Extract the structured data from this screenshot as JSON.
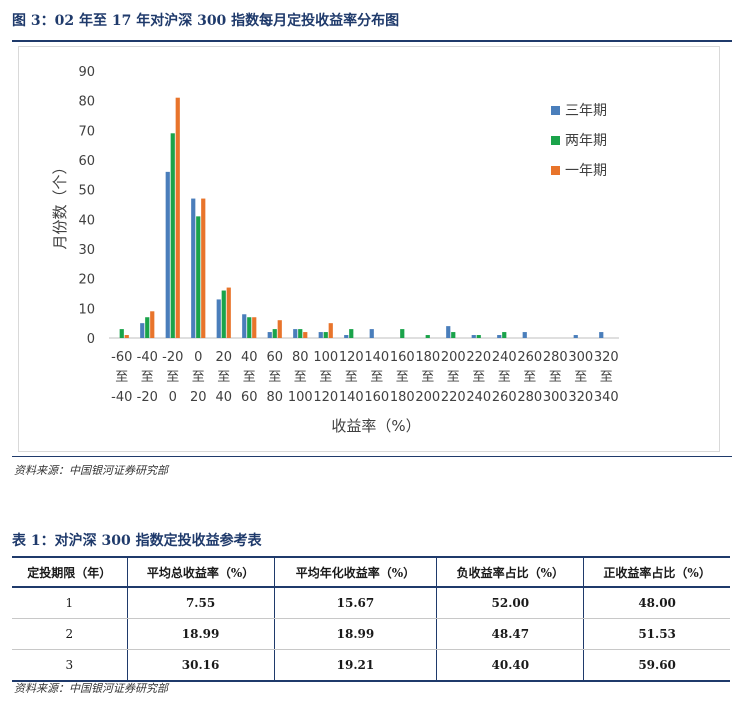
{
  "figure": {
    "title": "图 3：02 年至 17 年对沪深 300 指数每月定投收益率分布图",
    "source": "资料来源：中国银河证券研究部"
  },
  "colors": {
    "accent": "#1f3a6b",
    "series": [
      "#4a7ebb",
      "#1aa34a",
      "#e8742b"
    ]
  },
  "chart_data": {
    "type": "bar",
    "title": "",
    "xlabel": "收益率（%）",
    "ylabel": "月份数（个）",
    "ylim": [
      0,
      90
    ],
    "yticks": [
      0,
      10,
      20,
      30,
      40,
      50,
      60,
      70,
      80,
      90
    ],
    "grid": false,
    "legend_position": "right",
    "categories": [
      [
        "-60",
        "至",
        "-40"
      ],
      [
        "-40",
        "至",
        "-20"
      ],
      [
        "-20",
        "至",
        "0"
      ],
      [
        "0",
        "至",
        "20"
      ],
      [
        "20",
        "至",
        "40"
      ],
      [
        "40",
        "至",
        "60"
      ],
      [
        "60",
        "至",
        "80"
      ],
      [
        "80",
        "至",
        "100"
      ],
      [
        "100",
        "至",
        "120"
      ],
      [
        "120",
        "至",
        "140"
      ],
      [
        "140",
        "至",
        "160"
      ],
      [
        "160",
        "至",
        "180"
      ],
      [
        "180",
        "至",
        "200"
      ],
      [
        "200",
        "至",
        "220"
      ],
      [
        "220",
        "至",
        "240"
      ],
      [
        "240",
        "至",
        "260"
      ],
      [
        "260",
        "至",
        "280"
      ],
      [
        "280",
        "至",
        "300"
      ],
      [
        "300",
        "至",
        "320"
      ],
      [
        "320",
        "至",
        "340"
      ]
    ],
    "series": [
      {
        "name": "三年期",
        "color": "#4a7ebb",
        "values": [
          0,
          5,
          56,
          47,
          13,
          8,
          2,
          3,
          2,
          1,
          3,
          0,
          0,
          4,
          1,
          1,
          2,
          0,
          1,
          2
        ]
      },
      {
        "name": "两年期",
        "color": "#1aa34a",
        "values": [
          3,
          7,
          69,
          41,
          16,
          7,
          3,
          3,
          2,
          3,
          0,
          3,
          1,
          2,
          1,
          2,
          0,
          0,
          0,
          0
        ]
      },
      {
        "name": "一年期",
        "color": "#e8742b",
        "values": [
          1,
          9,
          81,
          47,
          17,
          7,
          6,
          2,
          5,
          0,
          0,
          0,
          0,
          0,
          0,
          0,
          0,
          0,
          0,
          0
        ]
      }
    ]
  },
  "table": {
    "title": "表 1：对沪深 300 指数定投收益参考表",
    "headers": [
      "定投期限（年）",
      "平均总收益率（%）",
      "平均年化收益率（%）",
      "负收益率占比（%）",
      "正收益率占比（%）"
    ],
    "rows": [
      [
        "1",
        "7.55",
        "15.67",
        "52.00",
        "48.00"
      ],
      [
        "2",
        "18.99",
        "18.99",
        "48.47",
        "51.53"
      ],
      [
        "3",
        "30.16",
        "19.21",
        "40.40",
        "59.60"
      ]
    ],
    "source": "资料来源：中国银河证券研究部"
  }
}
